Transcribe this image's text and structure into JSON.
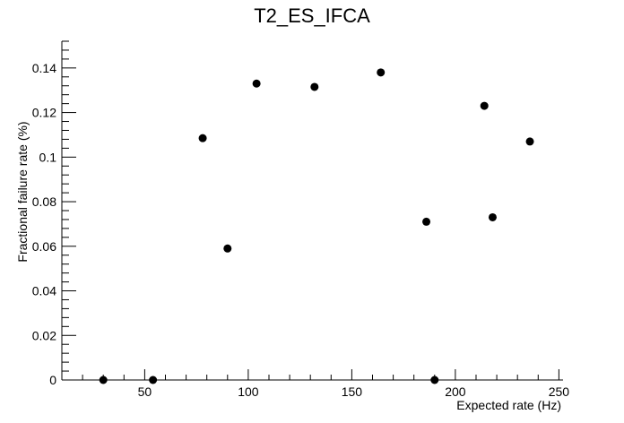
{
  "chart_data": {
    "type": "scatter",
    "title": "T2_ES_IFCA",
    "xlabel": "Expected rate (Hz)",
    "ylabel": "Fractional failure rate (%)",
    "xlim": [
      10,
      252
    ],
    "ylim": [
      0,
      0.152
    ],
    "x_ticks": [
      50,
      100,
      150,
      200,
      250
    ],
    "x_tick_labels": [
      "50",
      "100",
      "150",
      "200",
      "250"
    ],
    "y_ticks": [
      0,
      0.02,
      0.04,
      0.06,
      0.08,
      0.1,
      0.12,
      0.14
    ],
    "y_tick_labels": [
      "0",
      "0.02",
      "0.04",
      "0.06",
      "0.08",
      "0.1",
      "0.12",
      "0.14"
    ],
    "grid": false,
    "marker_color": "#000000",
    "points": [
      {
        "x": 30,
        "y": 0
      },
      {
        "x": 54,
        "y": 0
      },
      {
        "x": 78,
        "y": 0.1085
      },
      {
        "x": 90,
        "y": 0.059
      },
      {
        "x": 104,
        "y": 0.133
      },
      {
        "x": 132,
        "y": 0.1315
      },
      {
        "x": 164,
        "y": 0.138
      },
      {
        "x": 186,
        "y": 0.071
      },
      {
        "x": 190,
        "y": 0
      },
      {
        "x": 214,
        "y": 0.123
      },
      {
        "x": 218,
        "y": 0.073
      },
      {
        "x": 236,
        "y": 0.107
      }
    ]
  }
}
